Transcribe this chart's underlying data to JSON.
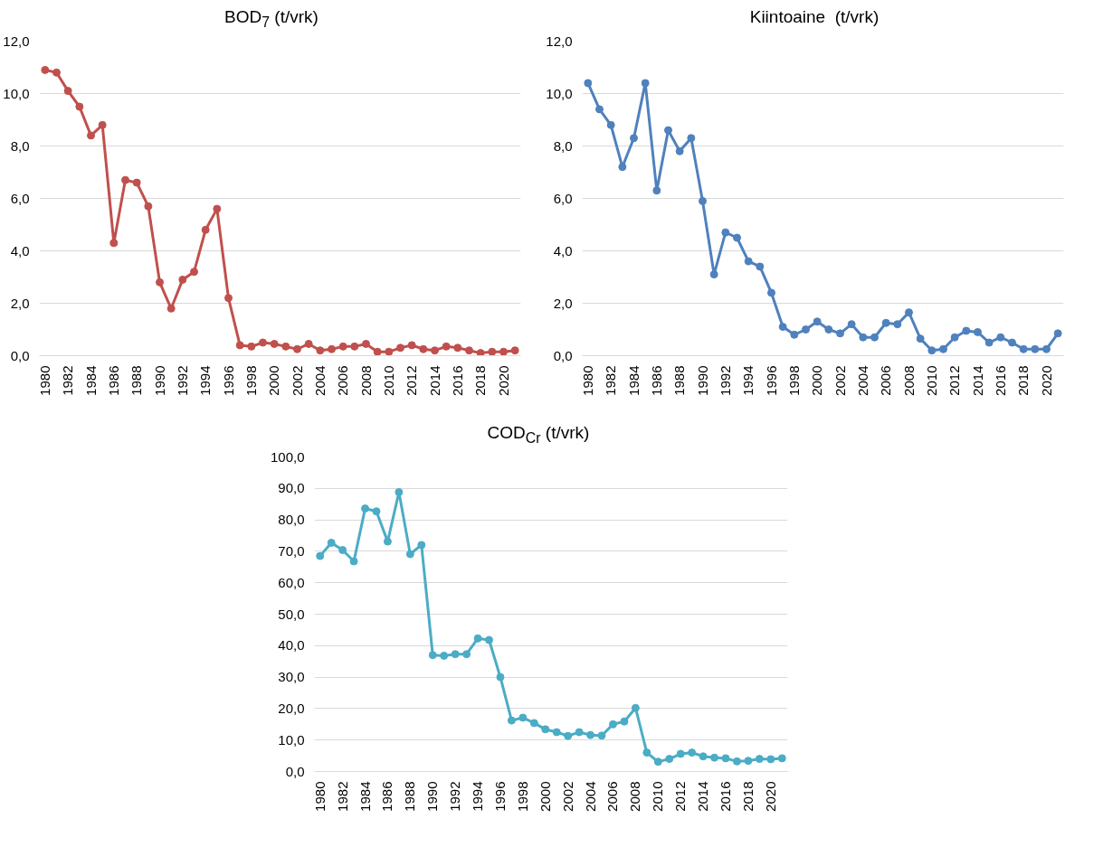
{
  "chart_data": [
    {
      "type": "line",
      "title": "BOD$_{7}$ (t/vrk)",
      "x": [
        1980,
        1981,
        1982,
        1983,
        1984,
        1985,
        1986,
        1987,
        1988,
        1989,
        1990,
        1991,
        1992,
        1993,
        1994,
        1995,
        1996,
        1997,
        1998,
        1999,
        2000,
        2001,
        2002,
        2003,
        2004,
        2005,
        2006,
        2007,
        2008,
        2009,
        2010,
        2011,
        2012,
        2013,
        2014,
        2015,
        2016,
        2017,
        2018,
        2019,
        2020,
        2021
      ],
      "series": [
        {
          "color": "#c0504d",
          "values": [
            10.9,
            10.8,
            10.1,
            9.5,
            8.4,
            8.8,
            4.3,
            6.7,
            6.6,
            5.7,
            2.8,
            1.8,
            2.9,
            3.2,
            4.8,
            5.6,
            2.2,
            0.4,
            0.35,
            0.5,
            0.45,
            0.35,
            0.25,
            0.45,
            0.2,
            0.25,
            0.35,
            0.35,
            0.45,
            0.15,
            0.15,
            0.3,
            0.4,
            0.25,
            0.2,
            0.35,
            0.3,
            0.2,
            0.1,
            0.15,
            0.15,
            0.2
          ]
        }
      ],
      "xlim": [
        1979.5,
        2021.5
      ],
      "xticks": [
        1980,
        1982,
        1984,
        1986,
        1988,
        1990,
        1992,
        1994,
        1996,
        1998,
        2000,
        2002,
        2004,
        2006,
        2008,
        2010,
        2012,
        2014,
        2016,
        2018,
        2020
      ],
      "ylim": [
        0,
        12
      ],
      "yticks": [
        {
          "value": 0,
          "label": "0,0"
        },
        {
          "value": 2,
          "label": "2,0"
        },
        {
          "value": 4,
          "label": "4,0"
        },
        {
          "value": 6,
          "label": "6,0"
        },
        {
          "value": 8,
          "label": "8,0"
        },
        {
          "value": 10,
          "label": "10,0"
        },
        {
          "value": 12,
          "label": "12,0"
        }
      ],
      "grid": "y",
      "marker": "circle",
      "line_style": "solid"
    },
    {
      "type": "line",
      "title": "Kiintoaine  (t/vrk)",
      "x": [
        1980,
        1981,
        1982,
        1983,
        1984,
        1985,
        1986,
        1987,
        1988,
        1989,
        1990,
        1991,
        1992,
        1993,
        1994,
        1995,
        1996,
        1997,
        1998,
        1999,
        2000,
        2001,
        2002,
        2003,
        2004,
        2005,
        2006,
        2007,
        2008,
        2009,
        2010,
        2011,
        2012,
        2013,
        2014,
        2015,
        2016,
        2017,
        2018,
        2019,
        2020,
        2021
      ],
      "series": [
        {
          "color": "#4f81bd",
          "values": [
            10.4,
            9.4,
            8.8,
            7.2,
            8.3,
            10.4,
            6.3,
            8.6,
            7.8,
            8.3,
            5.9,
            3.1,
            4.7,
            4.5,
            3.6,
            3.4,
            2.4,
            1.1,
            0.8,
            1.0,
            1.3,
            1.0,
            0.85,
            1.2,
            0.7,
            0.7,
            1.25,
            1.2,
            1.65,
            0.65,
            0.2,
            0.25,
            0.7,
            0.95,
            0.9,
            0.5,
            0.7,
            0.5,
            0.25,
            0.25,
            0.25,
            0.85
          ]
        }
      ],
      "xlim": [
        1979.5,
        2021.5
      ],
      "xticks": [
        1980,
        1982,
        1984,
        1986,
        1988,
        1990,
        1992,
        1994,
        1996,
        1998,
        2000,
        2002,
        2004,
        2006,
        2008,
        2010,
        2012,
        2014,
        2016,
        2018,
        2020
      ],
      "ylim": [
        0,
        12
      ],
      "yticks": [
        {
          "value": 0,
          "label": "0,0"
        },
        {
          "value": 2,
          "label": "2,0"
        },
        {
          "value": 4,
          "label": "4,0"
        },
        {
          "value": 6,
          "label": "6,0"
        },
        {
          "value": 8,
          "label": "8,0"
        },
        {
          "value": 10,
          "label": "10,0"
        },
        {
          "value": 12,
          "label": "12,0"
        }
      ],
      "grid": "y",
      "marker": "circle",
      "line_style": "solid"
    },
    {
      "type": "line",
      "title": "COD$_{Cr}$ (t/vrk)",
      "x": [
        1980,
        1981,
        1982,
        1983,
        1984,
        1985,
        1986,
        1987,
        1988,
        1989,
        1990,
        1991,
        1992,
        1993,
        1994,
        1995,
        1996,
        1997,
        1998,
        1999,
        2000,
        2001,
        2002,
        2003,
        2004,
        2005,
        2006,
        2007,
        2008,
        2009,
        2010,
        2011,
        2012,
        2013,
        2014,
        2015,
        2016,
        2017,
        2018,
        2019,
        2020,
        2021
      ],
      "series": [
        {
          "color": "#4bacc6",
          "values": [
            68.5,
            72.7,
            70.4,
            66.8,
            83.6,
            82.7,
            73.1,
            88.8,
            69.1,
            72.0,
            37.0,
            36.8,
            37.3,
            37.3,
            42.3,
            41.8,
            30.0,
            16.2,
            17.1,
            15.4,
            13.4,
            12.5,
            11.3,
            12.5,
            11.6,
            11.4,
            15.0,
            15.9,
            20.2,
            6.0,
            3.1,
            4.0,
            5.6,
            6.0,
            4.8,
            4.4,
            4.2,
            3.2,
            3.4,
            4.0,
            3.9,
            4.2
          ]
        }
      ],
      "xlim": [
        1979.5,
        2021.5
      ],
      "xticks": [
        1980,
        1982,
        1984,
        1986,
        1988,
        1990,
        1992,
        1994,
        1996,
        1998,
        2000,
        2002,
        2004,
        2006,
        2008,
        2010,
        2012,
        2014,
        2016,
        2018,
        2020
      ],
      "ylim": [
        0,
        100
      ],
      "yticks": [
        {
          "value": 0,
          "label": "0,0"
        },
        {
          "value": 10,
          "label": "10,0"
        },
        {
          "value": 20,
          "label": "20,0"
        },
        {
          "value": 30,
          "label": "30,0"
        },
        {
          "value": 40,
          "label": "40,0"
        },
        {
          "value": 50,
          "label": "50,0"
        },
        {
          "value": 60,
          "label": "60,0"
        },
        {
          "value": 70,
          "label": "70,0"
        },
        {
          "value": 80,
          "label": "80,0"
        },
        {
          "value": 90,
          "label": "90,0"
        },
        {
          "value": 100,
          "label": "100,0"
        }
      ],
      "grid": "y",
      "marker": "circle",
      "line_style": "solid"
    }
  ]
}
